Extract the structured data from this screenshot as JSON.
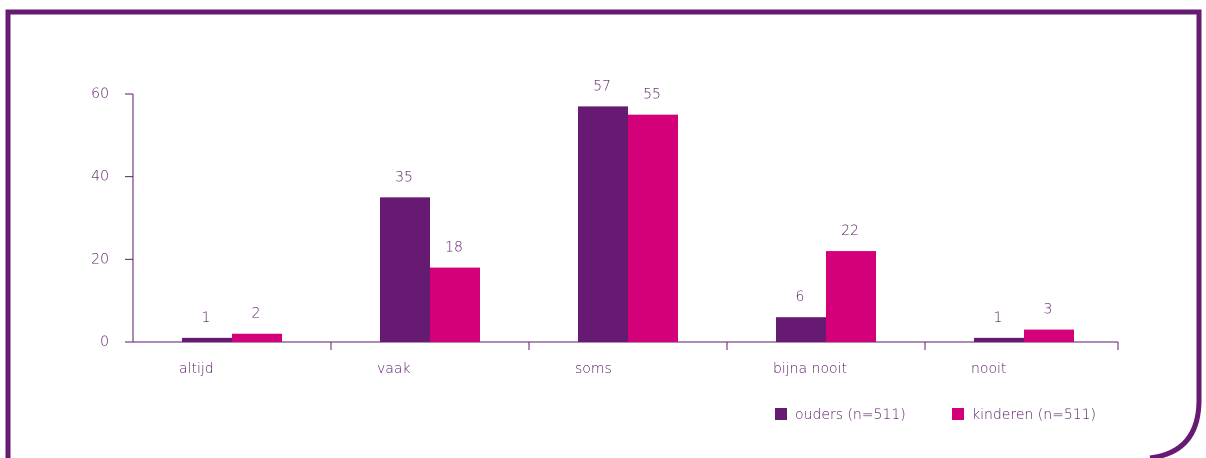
{
  "chart_data": {
    "type": "bar",
    "categories": [
      "altijd",
      "vaak",
      "soms",
      "bijna nooit",
      "nooit"
    ],
    "series": [
      {
        "name": "ouders (n=511)",
        "color": "#661a72",
        "values": [
          1,
          35,
          57,
          6,
          1
        ]
      },
      {
        "name": "kinderen (n=511)",
        "color": "#d4007a",
        "values": [
          2,
          18,
          55,
          22,
          3
        ]
      }
    ],
    "ylim": [
      0,
      60
    ],
    "yticks": [
      0,
      20,
      40,
      60
    ],
    "grid": false,
    "legend": "bottom-right"
  }
}
